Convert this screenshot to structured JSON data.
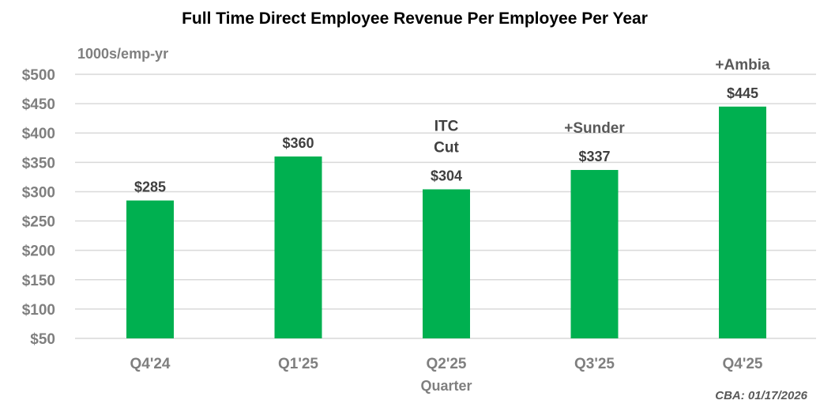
{
  "chart_data": {
    "type": "bar",
    "title": "Full Time Direct Employee Revenue Per Employee Per Year",
    "unit_label": "1000s/emp-yr",
    "xlabel": "Quarter",
    "ylabel": "",
    "categories": [
      "Q4'24",
      "Q1'25",
      "Q2'25",
      "Q3'25",
      "Q4'25"
    ],
    "values": [
      285,
      360,
      304,
      337,
      445
    ],
    "data_labels": [
      "$285",
      "$360",
      "$304",
      "$337",
      "$445"
    ],
    "annotations": [
      {
        "category": "Q2'25",
        "lines": [
          "ITC",
          "Cut"
        ]
      },
      {
        "category": "Q3'25",
        "lines": [
          "+Sunder"
        ]
      },
      {
        "category": "Q4'25",
        "lines": [
          "+Ambia"
        ]
      }
    ],
    "ylim": [
      50,
      500
    ],
    "yticks": [
      50,
      100,
      150,
      200,
      250,
      300,
      350,
      400,
      450,
      500
    ],
    "ytick_labels": [
      "$50",
      "$100",
      "$150",
      "$200",
      "$250",
      "$300",
      "$350",
      "$400",
      "$450",
      "$500"
    ],
    "grid": true,
    "legend": "none",
    "colors": {
      "bar": "#00b050",
      "grid": "#d9d9d9",
      "axis_text": "#7f7f7f",
      "label_text": "#404040"
    }
  },
  "footnote": "CBA: 01/17/2026"
}
